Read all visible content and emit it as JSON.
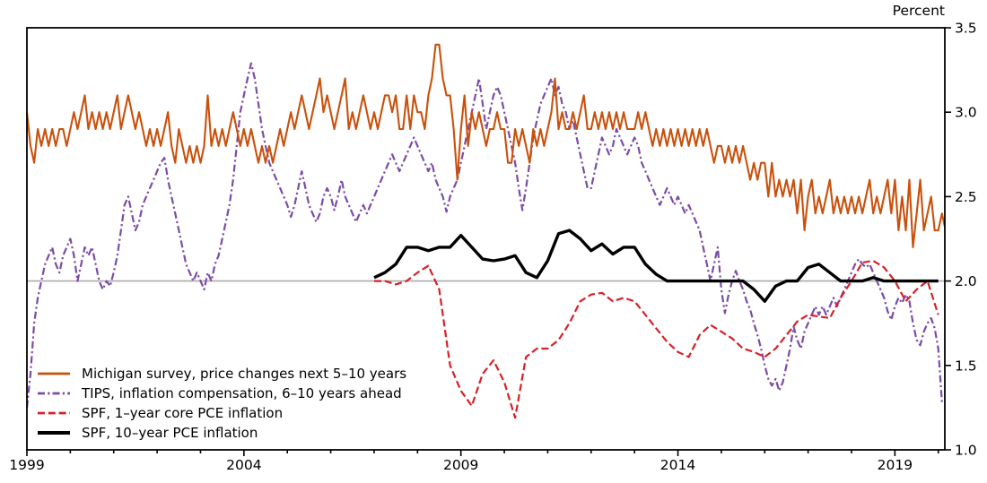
{
  "axis_title": "Percent",
  "chart_data": {
    "type": "line",
    "title": "",
    "xlabel": "",
    "ylabel": "Percent",
    "x_range": [
      1999,
      2020.15
    ],
    "y_range": [
      1.0,
      3.5
    ],
    "x_major_ticks": [
      1999,
      2004,
      2009,
      2014,
      2019
    ],
    "x_tick_labels": [
      "1999",
      "2004",
      "2009",
      "2014",
      "2019"
    ],
    "x_minor_tick_step_years": 1,
    "y_ticks": [
      1.0,
      1.5,
      2.0,
      2.5,
      3.0,
      3.5
    ],
    "y_tick_labels": [
      "1.0",
      "1.5",
      "2.0",
      "2.5",
      "3.0",
      "3.5"
    ],
    "grid": "none",
    "reference_line_value": 2.0,
    "reference_line_color": "#ababab",
    "legend_position": "lower-left",
    "series": [
      {
        "name": "Michigan survey, price changes next 5–10 years",
        "color": "#c9510c",
        "style": "solid",
        "width": 2.1,
        "start_year": 1999,
        "step_months": 1,
        "values": [
          3.0,
          2.8,
          2.7,
          2.9,
          2.8,
          2.9,
          2.8,
          2.9,
          2.8,
          2.9,
          2.9,
          2.8,
          2.9,
          3.0,
          2.9,
          3.0,
          3.1,
          2.9,
          3.0,
          2.9,
          3.0,
          2.9,
          3.0,
          2.9,
          3.0,
          3.1,
          2.9,
          3.0,
          3.1,
          3.0,
          2.9,
          3.0,
          2.9,
          2.8,
          2.9,
          2.8,
          2.9,
          2.8,
          2.9,
          3.0,
          2.8,
          2.7,
          2.9,
          2.8,
          2.7,
          2.8,
          2.7,
          2.8,
          2.7,
          2.8,
          3.1,
          2.8,
          2.9,
          2.8,
          2.9,
          2.8,
          2.9,
          3.0,
          2.9,
          2.8,
          2.9,
          2.8,
          2.9,
          2.8,
          2.7,
          2.8,
          2.7,
          2.8,
          2.7,
          2.8,
          2.9,
          2.8,
          2.9,
          3.0,
          2.9,
          3.0,
          3.1,
          3.0,
          2.9,
          3.0,
          3.1,
          3.2,
          3.0,
          3.1,
          3.0,
          2.9,
          3.0,
          3.1,
          3.2,
          2.9,
          3.0,
          2.9,
          3.0,
          3.1,
          3.0,
          2.9,
          3.0,
          2.9,
          3.0,
          3.1,
          3.1,
          3.0,
          3.1,
          2.9,
          2.9,
          3.1,
          2.9,
          3.1,
          3.0,
          3.0,
          2.9,
          3.1,
          3.2,
          3.4,
          3.4,
          3.2,
          3.1,
          3.1,
          2.9,
          2.6,
          2.9,
          3.1,
          2.8,
          3.0,
          2.9,
          3.0,
          2.9,
          2.8,
          2.9,
          2.9,
          3.0,
          2.9,
          2.9,
          2.7,
          2.7,
          2.9,
          2.8,
          2.9,
          2.8,
          2.7,
          2.9,
          2.8,
          2.9,
          2.8,
          2.9,
          3.0,
          3.2,
          2.9,
          3.0,
          2.9,
          2.9,
          3.0,
          2.9,
          3.0,
          3.1,
          2.9,
          2.9,
          3.0,
          2.9,
          3.0,
          2.9,
          3.0,
          2.9,
          3.0,
          2.9,
          3.0,
          2.9,
          2.9,
          2.9,
          3.0,
          2.9,
          3.0,
          2.9,
          2.8,
          2.9,
          2.8,
          2.9,
          2.8,
          2.9,
          2.8,
          2.9,
          2.8,
          2.9,
          2.8,
          2.9,
          2.8,
          2.9,
          2.8,
          2.9,
          2.8,
          2.7,
          2.8,
          2.8,
          2.7,
          2.8,
          2.7,
          2.8,
          2.7,
          2.8,
          2.7,
          2.6,
          2.7,
          2.6,
          2.7,
          2.7,
          2.5,
          2.7,
          2.5,
          2.6,
          2.5,
          2.6,
          2.5,
          2.6,
          2.4,
          2.6,
          2.3,
          2.5,
          2.6,
          2.4,
          2.5,
          2.4,
          2.5,
          2.6,
          2.4,
          2.5,
          2.4,
          2.5,
          2.4,
          2.5,
          2.4,
          2.5,
          2.4,
          2.5,
          2.6,
          2.4,
          2.5,
          2.4,
          2.5,
          2.6,
          2.4,
          2.6,
          2.3,
          2.5,
          2.3,
          2.6,
          2.2,
          2.4,
          2.6,
          2.3,
          2.4,
          2.5,
          2.3,
          2.3,
          2.4,
          2.3
        ]
      },
      {
        "name": "TIPS, inflation compensation, 6–10 years ahead",
        "color": "#7b4ca6",
        "style": "dashdot",
        "width": 2.2,
        "start_year": 1999,
        "step_months": 1,
        "values": [
          1.25,
          1.45,
          1.75,
          1.9,
          2.0,
          2.1,
          2.15,
          2.2,
          2.1,
          2.05,
          2.15,
          2.2,
          2.25,
          2.15,
          2.0,
          2.1,
          2.2,
          2.15,
          2.2,
          2.1,
          2.0,
          1.95,
          2.0,
          1.97,
          2.05,
          2.15,
          2.3,
          2.45,
          2.5,
          2.4,
          2.3,
          2.35,
          2.45,
          2.5,
          2.55,
          2.6,
          2.65,
          2.7,
          2.73,
          2.6,
          2.5,
          2.4,
          2.3,
          2.2,
          2.1,
          2.05,
          2.0,
          2.05,
          2.0,
          1.95,
          2.05,
          2.0,
          2.1,
          2.15,
          2.25,
          2.35,
          2.45,
          2.6,
          2.8,
          3.0,
          3.1,
          3.2,
          3.29,
          3.2,
          3.05,
          2.9,
          2.8,
          2.7,
          2.65,
          2.6,
          2.55,
          2.5,
          2.45,
          2.38,
          2.45,
          2.55,
          2.65,
          2.55,
          2.45,
          2.4,
          2.35,
          2.4,
          2.5,
          2.55,
          2.5,
          2.42,
          2.5,
          2.6,
          2.5,
          2.45,
          2.4,
          2.35,
          2.4,
          2.45,
          2.4,
          2.45,
          2.5,
          2.55,
          2.6,
          2.65,
          2.7,
          2.75,
          2.7,
          2.65,
          2.7,
          2.75,
          2.8,
          2.85,
          2.8,
          2.75,
          2.7,
          2.65,
          2.7,
          2.6,
          2.55,
          2.5,
          2.41,
          2.5,
          2.55,
          2.6,
          2.7,
          2.8,
          2.9,
          3.0,
          3.1,
          3.2,
          3.05,
          2.9,
          3.0,
          3.1,
          3.15,
          3.1,
          3.0,
          2.9,
          2.8,
          2.7,
          2.55,
          2.42,
          2.55,
          2.7,
          2.85,
          2.95,
          3.05,
          3.1,
          3.15,
          3.2,
          3.1,
          3.15,
          3.05,
          3.0,
          2.9,
          2.95,
          2.85,
          2.75,
          2.65,
          2.55,
          2.55,
          2.65,
          2.75,
          2.85,
          2.8,
          2.75,
          2.8,
          2.9,
          2.85,
          2.8,
          2.75,
          2.8,
          2.85,
          2.8,
          2.7,
          2.65,
          2.6,
          2.55,
          2.5,
          2.45,
          2.5,
          2.55,
          2.5,
          2.45,
          2.5,
          2.45,
          2.4,
          2.45,
          2.4,
          2.35,
          2.3,
          2.2,
          2.1,
          2.0,
          2.1,
          2.2,
          1.95,
          1.81,
          1.92,
          2.0,
          2.06,
          2.0,
          1.95,
          1.88,
          1.83,
          1.75,
          1.68,
          1.6,
          1.5,
          1.42,
          1.38,
          1.42,
          1.35,
          1.4,
          1.5,
          1.6,
          1.73,
          1.65,
          1.6,
          1.7,
          1.75,
          1.8,
          1.85,
          1.8,
          1.85,
          1.8,
          1.85,
          1.9,
          1.85,
          1.9,
          1.95,
          2.0,
          2.05,
          2.1,
          2.13,
          2.1,
          2.08,
          2.1,
          2.05,
          2.0,
          1.95,
          1.9,
          1.82,
          1.77,
          1.85,
          1.9,
          1.87,
          1.92,
          1.88,
          1.75,
          1.65,
          1.62,
          1.7,
          1.75,
          1.78,
          1.72,
          1.6,
          1.28
        ]
      },
      {
        "name": "SPF, 1–year core PCE inflation",
        "color": "#d62128",
        "style": "dashed",
        "width": 2.2,
        "start_year": 2007,
        "step_months": 3,
        "values": [
          2.0,
          2.0,
          1.98,
          2.0,
          2.05,
          2.09,
          1.95,
          1.5,
          1.35,
          1.26,
          1.45,
          1.53,
          1.4,
          1.19,
          1.55,
          1.6,
          1.6,
          1.65,
          1.75,
          1.88,
          1.92,
          1.93,
          1.88,
          1.9,
          1.88,
          1.8,
          1.72,
          1.64,
          1.58,
          1.55,
          1.68,
          1.74,
          1.7,
          1.66,
          1.6,
          1.58,
          1.55,
          1.6,
          1.68,
          1.76,
          1.8,
          1.79,
          1.78,
          1.9,
          2.0,
          2.11,
          2.12,
          2.08,
          2.0,
          1.88,
          1.95,
          2.0,
          1.8
        ]
      },
      {
        "name": "SPF, 10–year PCE inflation",
        "color": "#000000",
        "style": "solid",
        "width": 3.4,
        "start_year": 2007,
        "step_months": 3,
        "values": [
          2.02,
          2.05,
          2.1,
          2.2,
          2.2,
          2.18,
          2.2,
          2.2,
          2.27,
          2.2,
          2.13,
          2.12,
          2.13,
          2.15,
          2.05,
          2.02,
          2.12,
          2.28,
          2.3,
          2.25,
          2.18,
          2.22,
          2.16,
          2.2,
          2.2,
          2.1,
          2.04,
          2.0,
          2.0,
          2.0,
          2.0,
          2.0,
          2.0,
          2.0,
          2.0,
          1.95,
          1.88,
          1.97,
          2.0,
          2.0,
          2.08,
          2.1,
          2.05,
          2.0,
          2.0,
          2.0,
          2.02,
          2.0,
          2.0,
          2.0,
          2.0,
          2.0,
          2.0
        ]
      }
    ]
  }
}
